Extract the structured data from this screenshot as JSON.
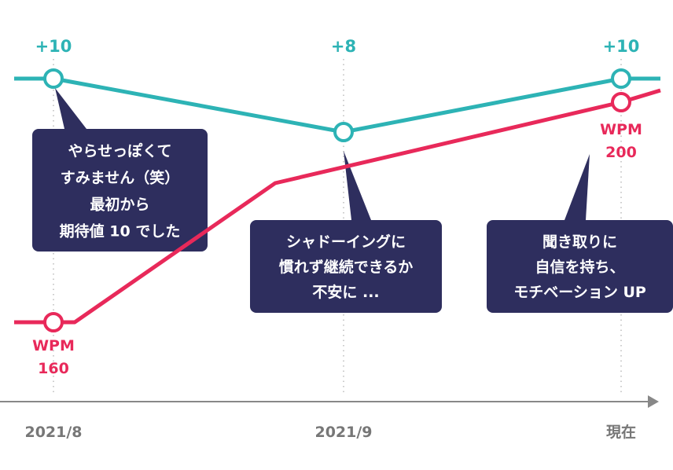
{
  "chart_data": {
    "type": "line",
    "categories": [
      "2021/8",
      "2021/9",
      "現在"
    ],
    "series": [
      {
        "name": "",
        "color": "#2db3b5",
        "values": [
          10,
          8,
          10
        ],
        "labels": [
          "+10",
          "+8",
          "+10"
        ]
      },
      {
        "name": "",
        "color": "#e8295a",
        "values": [
          160,
          180,
          200
        ],
        "labels": [
          [
            "WPM",
            "160"
          ],
          null,
          [
            "WPM",
            "200"
          ]
        ]
      }
    ],
    "annotations": [
      {
        "category": "2021/8",
        "lines": [
          "やらせっぽくて",
          "すみません（笑）",
          "最初から",
          "期待値 10 でした"
        ]
      },
      {
        "category": "2021/9",
        "lines": [
          "シャドーイングに",
          "慣れず継続できるか",
          "不安に ..."
        ]
      },
      {
        "category": "現在",
        "lines": [
          "聞き取りに",
          "自信を持ち、",
          "モチベーション UP"
        ]
      }
    ],
    "grid": false,
    "legend": "none"
  },
  "colors": {
    "teal": "#2db3b5",
    "red": "#e8295a",
    "bubble": "#2e2e5e",
    "axis": "#888888"
  }
}
